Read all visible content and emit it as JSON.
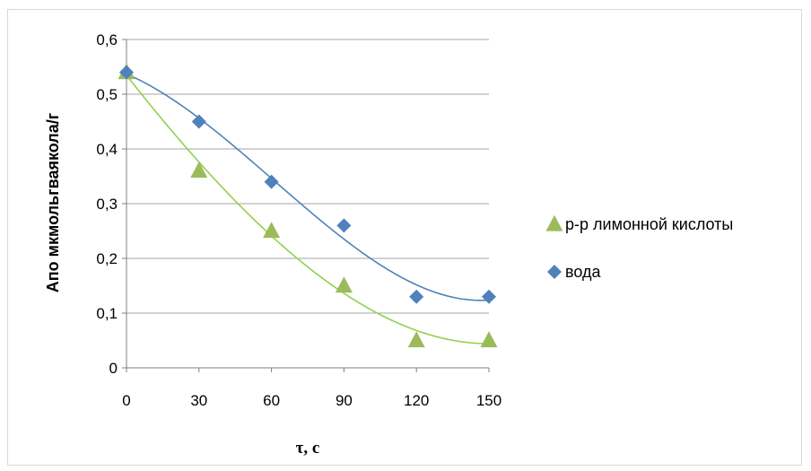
{
  "chart_data": {
    "type": "scatter",
    "title": "",
    "xlabel": "τ, с",
    "ylabel": "Апо мкмольгваякола/г",
    "x": [
      0,
      30,
      60,
      90,
      120,
      150
    ],
    "x_ticks": [
      "0",
      "30",
      "60",
      "90",
      "120",
      "150"
    ],
    "y_ticks": [
      "0",
      "0,1",
      "0,2",
      "0,3",
      "0,4",
      "0,5",
      "0,6"
    ],
    "xlim": [
      0,
      150
    ],
    "ylim": [
      0,
      0.6
    ],
    "grid": "horizontal",
    "legend_position": "right",
    "series": [
      {
        "name": "р-р лимонной кислоты",
        "marker": "triangle",
        "color": "#9bbb59",
        "trend_color": "#92d050",
        "values": [
          0.54,
          0.36,
          0.25,
          0.15,
          0.05,
          0.05
        ],
        "trendline": "polynomial"
      },
      {
        "name": "вода",
        "marker": "diamond",
        "color": "#4f81bd",
        "trend_color": "#4f81bd",
        "values": [
          0.54,
          0.45,
          0.34,
          0.26,
          0.13,
          0.13
        ],
        "trendline": "polynomial"
      }
    ]
  }
}
